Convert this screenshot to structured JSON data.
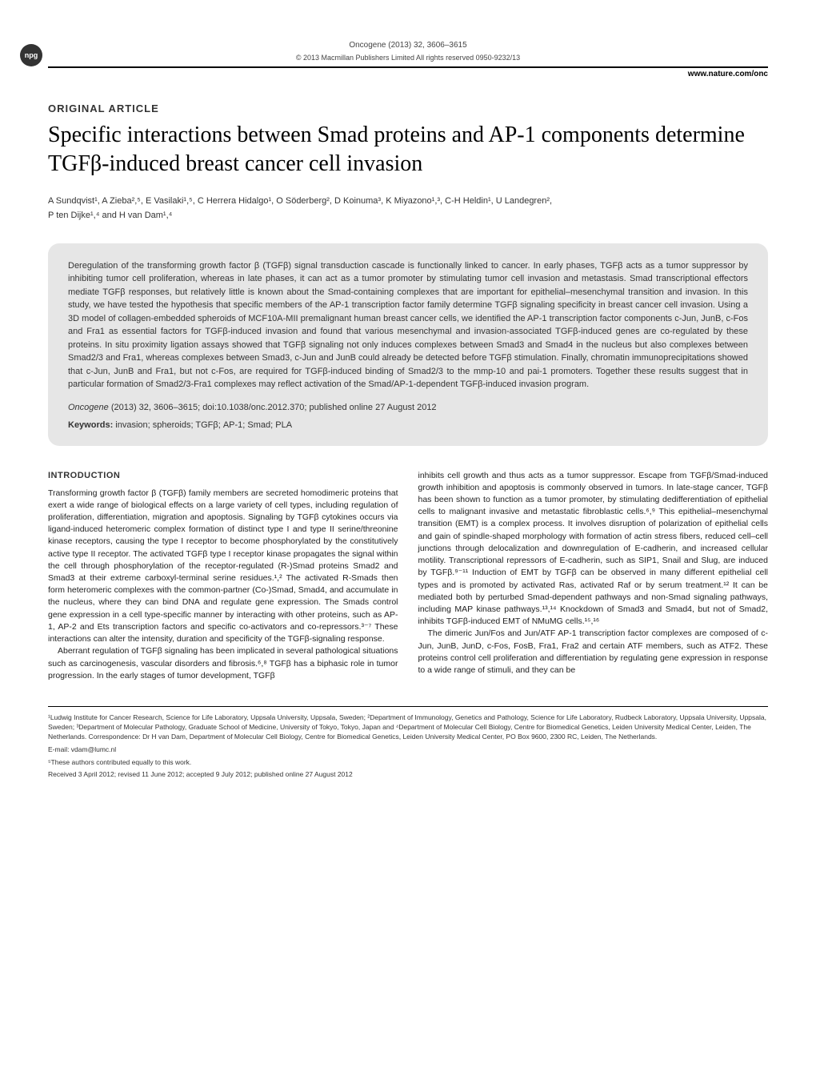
{
  "header": {
    "journal_line": "Oncogene (2013) 32, 3606–3615",
    "copyright_line": "© 2013 Macmillan Publishers Limited   All rights reserved 0950-9232/13",
    "website": "www.nature.com/onc",
    "badge": "npg"
  },
  "article": {
    "type": "ORIGINAL ARTICLE",
    "title": "Specific interactions between Smad proteins and AP-1 components determine TGFβ-induced breast cancer cell invasion",
    "authors_line1": "A Sundqvist¹, A Zieba²,⁵, E Vasilaki¹,⁵, C Herrera Hidalgo¹, O Söderberg², D Koinuma³, K Miyazono¹,³, C-H Heldin¹, U Landegren²,",
    "authors_line2": "P ten Dijke¹,⁴ and H van Dam¹,⁴"
  },
  "abstract": {
    "text": "Deregulation of the transforming growth factor β (TGFβ) signal transduction cascade is functionally linked to cancer. In early phases, TGFβ acts as a tumor suppressor by inhibiting tumor cell proliferation, whereas in late phases, it can act as a tumor promoter by stimulating tumor cell invasion and metastasis. Smad transcriptional effectors mediate TGFβ responses, but relatively little is known about the Smad-containing complexes that are important for epithelial–mesenchymal transition and invasion. In this study, we have tested the hypothesis that specific members of the AP-1 transcription factor family determine TGFβ signaling specificity in breast cancer cell invasion. Using a 3D model of collagen-embedded spheroids of MCF10A-MII premalignant human breast cancer cells, we identified the AP-1 transcription factor components c-Jun, JunB, c-Fos and Fra1 as essential factors for TGFβ-induced invasion and found that various mesenchymal and invasion-associated TGFβ-induced genes are co-regulated by these proteins. In situ proximity ligation assays showed that TGFβ signaling not only induces complexes between Smad3 and Smad4 in the nucleus but also complexes between Smad2/3 and Fra1, whereas complexes between Smad3, c-Jun and JunB could already be detected before TGFβ stimulation. Finally, chromatin immunoprecipitations showed that c-Jun, JunB and Fra1, but not c-Fos, are required for TGFβ-induced binding of Smad2/3 to the mmp-10 and pai-1 promoters. Together these results suggest that in particular formation of Smad2/3-Fra1 complexes may reflect activation of the Smad/AP-1-dependent TGFβ-induced invasion program.",
    "citation_journal": "Oncogene",
    "citation_rest": " (2013) 32, 3606–3615; doi:10.1038/onc.2012.370; published online 27 August 2012",
    "keywords_label": "Keywords:",
    "keywords_value": " invasion; spheroids; TGFβ; AP-1; Smad; PLA"
  },
  "body": {
    "intro_heading": "INTRODUCTION",
    "col1_p1": "Transforming growth factor β (TGFβ) family members are secreted homodimeric proteins that exert a wide range of biological effects on a large variety of cell types, including regulation of proliferation, differentiation, migration and apoptosis. Signaling by TGFβ cytokines occurs via ligand-induced heteromeric complex formation of distinct type I and type II serine/threonine kinase receptors, causing the type I receptor to become phosphorylated by the constitutively active type II receptor. The activated TGFβ type I receptor kinase propagates the signal within the cell through phosphorylation of the receptor-regulated (R-)Smad proteins Smad2 and Smad3 at their extreme carboxyl-terminal serine residues.¹,² The activated R-Smads then form heteromeric complexes with the common-partner (Co-)Smad, Smad4, and accumulate in the nucleus, where they can bind DNA and regulate gene expression. The Smads control gene expression in a cell type-specific manner by interacting with other proteins, such as AP-1, AP-2 and Ets transcription factors and specific co-activators and co-repressors.³⁻⁷ These interactions can alter the intensity, duration and specificity of the TGFβ-signaling response.",
    "col1_p2": "Aberrant regulation of TGFβ signaling has been implicated in several pathological situations such as carcinogenesis, vascular disorders and fibrosis.⁶,⁸ TGFβ has a biphasic role in tumor progression. In the early stages of tumor development, TGFβ",
    "col2_p1": "inhibits cell growth and thus acts as a tumor suppressor. Escape from TGFβ/Smad-induced growth inhibition and apoptosis is commonly observed in tumors. In late-stage cancer, TGFβ has been shown to function as a tumor promoter, by stimulating dedifferentiation of epithelial cells to malignant invasive and metastatic fibroblastic cells.⁶,⁹ This epithelial–mesenchymal transition (EMT) is a complex process. It involves disruption of polarization of epithelial cells and gain of spindle-shaped morphology with formation of actin stress fibers, reduced cell–cell junctions through delocalization and downregulation of E-cadherin, and increased cellular motility. Transcriptional repressors of E-cadherin, such as SIP1, Snail and Slug, are induced by TGFβ.⁹⁻¹¹ Induction of EMT by TGFβ can be observed in many different epithelial cell types and is promoted by activated Ras, activated Raf or by serum treatment.¹² It can be mediated both by perturbed Smad-dependent pathways and non-Smad signaling pathways, including MAP kinase pathways.¹³,¹⁴ Knockdown of Smad3 and Smad4, but not of Smad2, inhibits TGFβ-induced EMT of NMuMG cells.¹⁵,¹⁶",
    "col2_p2": "The dimeric Jun/Fos and Jun/ATF AP-1 transcription factor complexes are composed of c-Jun, JunB, JunD, c-Fos, FosB, Fra1, Fra2 and certain ATF members, such as ATF2. These proteins control cell proliferation and differentiation by regulating gene expression in response to a wide range of stimuli, and they can be"
  },
  "footer": {
    "affiliations": "¹Ludwig Institute for Cancer Research, Science for Life Laboratory, Uppsala University, Uppsala, Sweden; ²Department of Immunology, Genetics and Pathology, Science for Life Laboratory, Rudbeck Laboratory, Uppsala University, Uppsala, Sweden; ³Department of Molecular Pathology, Graduate School of Medicine, University of Tokyo, Tokyo, Japan and ⁴Department of Molecular Cell Biology, Centre for Biomedical Genetics, Leiden University Medical Center, Leiden, The Netherlands. Correspondence: Dr H van Dam, Department of Molecular Cell Biology, Centre for Biomedical Genetics, Leiden University Medical Center, PO Box 9600, 2300 RC, Leiden, The Netherlands.",
    "email": "E-mail: vdam@lumc.nl",
    "contrib": "⁵These authors contributed equally to this work.",
    "dates": "Received 3 April 2012; revised 11 June 2012; accepted 9 July 2012; published online 27 August 2012"
  },
  "colors": {
    "background": "#ffffff",
    "abstract_bg": "#e6e6e6",
    "text": "#000000",
    "text_gray": "#333333"
  }
}
